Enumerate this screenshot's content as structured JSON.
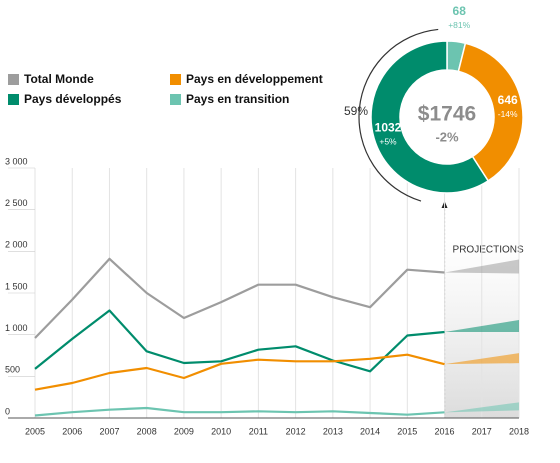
{
  "chart_data": [
    {
      "type": "line",
      "x": [
        2005,
        2006,
        2007,
        2008,
        2009,
        2010,
        2011,
        2012,
        2013,
        2014,
        2015,
        2016,
        2017,
        2018
      ],
      "xlim": [
        2005,
        2018
      ],
      "xticks": [
        2005,
        2006,
        2007,
        2008,
        2009,
        2010,
        2011,
        2012,
        2013,
        2014,
        2015,
        2016,
        2017,
        2018
      ],
      "ylim": [
        0,
        3000
      ],
      "yticks": [
        {
          "value": 0,
          "label": "0"
        },
        {
          "value": 500,
          "label": "500"
        },
        {
          "value": 1000,
          "label": "1 000"
        },
        {
          "value": 1500,
          "label": "1 500"
        },
        {
          "value": 2000,
          "label": "2 000"
        },
        {
          "value": 2500,
          "label": "2 500"
        },
        {
          "value": 3000,
          "label": "3 000"
        }
      ],
      "grid": "x",
      "annotation": "PROJECTIONS",
      "series": [
        {
          "name": "Total Monde",
          "color": "#9d9d9d",
          "values": [
            960,
            1420,
            1910,
            1500,
            1200,
            1390,
            1600,
            1600,
            1450,
            1330,
            1780,
            1746,
            null,
            null
          ]
        },
        {
          "name": "Pays développés",
          "color": "#008c6c",
          "values": [
            590,
            950,
            1290,
            800,
            660,
            680,
            820,
            860,
            690,
            560,
            990,
            1032,
            null,
            null
          ]
        },
        {
          "name": "Pays en développement",
          "color": "#f18e00",
          "values": [
            340,
            420,
            540,
            600,
            480,
            650,
            700,
            680,
            680,
            710,
            760,
            646,
            null,
            null
          ]
        },
        {
          "name": "Pays en transition",
          "color": "#6cc4b0",
          "values": [
            30,
            70,
            100,
            120,
            70,
            70,
            80,
            70,
            80,
            60,
            40,
            68,
            null,
            null
          ]
        }
      ]
    },
    {
      "type": "pie",
      "values": [
        68,
        646,
        1032
      ],
      "changes": [
        "+81%",
        "-14%",
        "+5%"
      ],
      "colors": [
        "#6cc4b0",
        "#f18e00",
        "#008c6c"
      ],
      "center_label": "$1746",
      "center_change": "-2%",
      "share_label": "59%"
    }
  ]
}
